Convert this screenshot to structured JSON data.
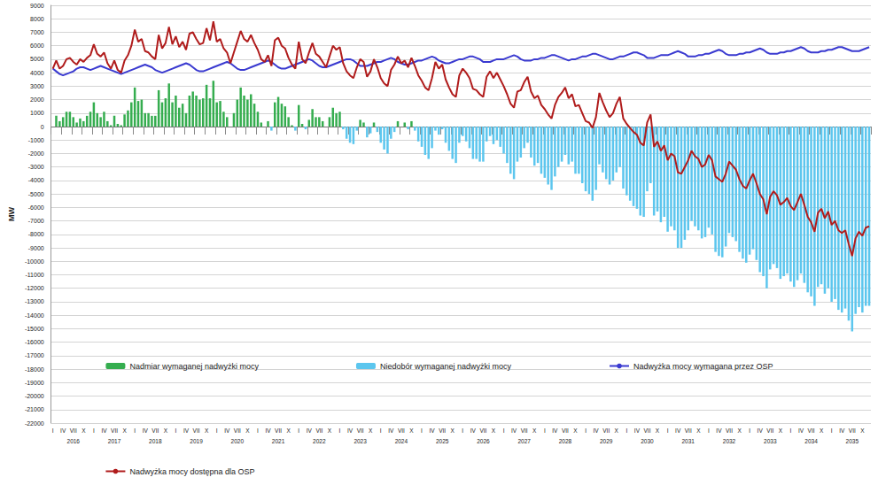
{
  "chart_data": {
    "type": "bar",
    "y_label": "MW",
    "categories": [
      "I",
      null,
      null,
      "IV",
      null,
      null,
      "VII",
      null,
      null,
      "X",
      null,
      null,
      "I",
      null,
      null,
      "IV",
      null,
      null,
      "VII",
      null,
      null,
      "X",
      null,
      null,
      "I",
      null,
      null,
      "IV",
      null,
      null,
      "VII",
      null,
      null,
      "X",
      null,
      null,
      "I",
      null,
      null,
      "IV",
      null,
      null,
      "VII",
      null,
      null,
      "X",
      null,
      null,
      "I",
      null,
      null,
      "IV",
      null,
      null,
      "VII",
      null,
      null,
      "X",
      null,
      null,
      "I",
      null,
      null,
      "IV",
      null,
      null,
      "VII",
      null,
      null,
      "X",
      null,
      null,
      "I",
      null,
      null,
      "IV",
      null,
      null,
      "VII",
      null,
      null,
      "X",
      null,
      null,
      "I",
      null,
      null,
      "IV",
      null,
      null,
      "VII",
      null,
      null,
      "X",
      null,
      null,
      "I",
      null,
      null,
      "IV",
      null,
      null,
      "VII",
      null,
      null,
      "X",
      null,
      null,
      "I",
      null,
      null,
      "IV",
      null,
      null,
      "VII",
      null,
      null,
      "X",
      null,
      null,
      "I",
      null,
      null,
      "IV",
      null,
      null,
      "VII",
      null,
      null,
      "X",
      null,
      null,
      "I",
      null,
      null,
      "IV",
      null,
      null,
      "VII",
      null,
      null,
      "X",
      null,
      null,
      "I",
      null,
      null,
      "IV",
      null,
      null,
      "VII",
      null,
      null,
      "X",
      null,
      null,
      "I",
      null,
      null,
      "IV",
      null,
      null,
      "VII",
      null,
      null,
      "X",
      null,
      null,
      "I",
      null,
      null,
      "IV",
      null,
      null,
      "VII",
      null,
      null,
      "X",
      null,
      null,
      "I",
      null,
      null,
      "IV",
      null,
      null,
      "VII",
      null,
      null,
      "X",
      null,
      null,
      "I",
      null,
      null,
      "IV",
      null,
      null,
      "VII",
      null,
      null,
      "X",
      null,
      null,
      "I",
      null,
      null,
      "IV",
      null,
      null,
      "VII",
      null,
      null,
      "X",
      null,
      null,
      "I",
      null,
      null,
      "IV",
      null,
      null,
      "VII",
      null,
      null,
      "X",
      null,
      null,
      "I",
      null,
      null,
      "IV",
      null,
      null,
      "VII",
      null,
      null,
      "X",
      null,
      null
    ],
    "year_labels": [
      "2016",
      "2017",
      "2018",
      "2019",
      "2020",
      "2021",
      "2022",
      "2023",
      "2024",
      "2025",
      "2026",
      "2027",
      "2028",
      "2029",
      "2030",
      "2031",
      "2032",
      "2033",
      "2034",
      "2035"
    ],
    "ylim": [
      -22000,
      9000
    ],
    "yticks": [
      -22000,
      -21000,
      -20000,
      -19000,
      -18000,
      -17000,
      -16000,
      -15000,
      -14000,
      -13000,
      -12000,
      -11000,
      -10000,
      -9000,
      -8000,
      -7000,
      -6000,
      -5000,
      -4000,
      -3000,
      -2000,
      -1000,
      0,
      1000,
      2000,
      3000,
      4000,
      5000,
      6000,
      7000,
      8000,
      9000
    ],
    "grid": true,
    "legend": "bottom",
    "series": [
      {
        "name": "Nadmiar wymaganej nadwyżki mocy",
        "type": "bar",
        "color": "#35ad4f",
        "values": [
          0,
          800,
          400,
          700,
          1100,
          1100,
          700,
          300,
          600,
          400,
          800,
          1100,
          1800,
          1000,
          700,
          1100,
          400,
          100,
          800,
          200,
          100,
          900,
          1200,
          1800,
          2900,
          1900,
          2000,
          1000,
          1000,
          800,
          800,
          2700,
          1800,
          2100,
          3200,
          1800,
          2300,
          1400,
          1700,
          1000,
          2300,
          2600,
          2300,
          2000,
          2100,
          3100,
          2100,
          3400,
          1800,
          1900,
          1100,
          700,
          0,
          1000,
          2000,
          2900,
          2300,
          2000,
          2400,
          1700,
          1100,
          300,
          0,
          400,
          null,
          1800,
          2200,
          1700,
          1500,
          700,
          100,
          null,
          1600,
          200,
          null,
          500,
          1300,
          700,
          700,
          400,
          0,
          700,
          1400,
          1000,
          1100,
          null,
          null,
          null,
          null,
          null,
          500,
          300,
          null,
          null,
          300,
          null,
          null,
          null,
          null,
          null,
          null,
          400,
          0,
          300,
          null,
          400,
          null,
          null,
          null,
          null,
          null,
          null,
          null,
          null,
          null,
          null,
          null,
          null,
          null,
          null,
          null,
          null,
          null,
          null,
          null,
          null,
          null,
          null,
          null,
          null,
          null,
          null,
          null,
          null,
          null,
          null,
          null,
          null,
          null,
          null,
          null,
          null,
          null,
          null,
          null,
          null,
          null,
          null,
          null,
          null,
          null,
          null,
          null,
          null,
          null,
          null,
          null,
          null,
          null,
          null,
          null,
          null,
          null,
          null,
          null,
          null,
          null,
          null,
          null,
          null,
          null,
          null,
          null,
          null,
          null,
          null,
          null,
          null,
          null,
          null,
          null,
          null,
          null,
          null,
          null,
          null,
          null,
          null,
          null,
          null,
          null,
          null,
          null,
          null,
          null,
          null,
          null,
          null,
          null,
          null,
          null,
          null,
          null,
          null,
          null,
          null,
          null,
          null,
          null,
          null,
          null,
          null,
          null,
          null,
          null,
          null,
          null,
          null,
          null,
          null,
          null,
          null,
          null,
          null,
          null,
          null,
          null,
          null,
          null,
          null,
          null,
          null,
          null,
          null,
          null,
          null,
          null,
          null,
          null,
          null
        ]
      },
      {
        "name": "Niedobór wymaganej nadwyżki mocy",
        "type": "bar",
        "color": "#5cc6ee",
        "values": [
          null,
          null,
          null,
          null,
          null,
          null,
          null,
          null,
          null,
          null,
          null,
          null,
          null,
          null,
          null,
          null,
          null,
          null,
          null,
          null,
          null,
          null,
          null,
          null,
          null,
          null,
          null,
          null,
          null,
          null,
          null,
          null,
          null,
          null,
          null,
          null,
          null,
          null,
          null,
          null,
          null,
          null,
          null,
          null,
          null,
          null,
          null,
          null,
          null,
          null,
          null,
          null,
          null,
          null,
          null,
          null,
          null,
          null,
          null,
          null,
          null,
          null,
          null,
          null,
          -300,
          null,
          null,
          null,
          null,
          null,
          null,
          -300,
          null,
          null,
          -200,
          null,
          null,
          null,
          null,
          null,
          null,
          null,
          null,
          null,
          null,
          -200,
          -900,
          -1200,
          -1300,
          -300,
          null,
          null,
          -800,
          -500,
          null,
          -400,
          -1200,
          -1700,
          -2000,
          -900,
          -400,
          null,
          null,
          null,
          -200,
          null,
          -300,
          -1100,
          -1500,
          -2100,
          -2400,
          -1600,
          -300,
          -600,
          -200,
          -1200,
          -1800,
          -2400,
          -2700,
          -1200,
          -700,
          -1100,
          -1600,
          -2400,
          -2400,
          -2600,
          -2600,
          -1100,
          -700,
          -1300,
          -1000,
          -1500,
          -2000,
          -2700,
          -3500,
          -3900,
          -2600,
          -2300,
          -1600,
          -1200,
          -2300,
          -2900,
          -2700,
          -3500,
          -3800,
          -4300,
          -4700,
          -3700,
          -3000,
          -2600,
          -2100,
          -2800,
          -2600,
          -3500,
          -3500,
          -4200,
          -4800,
          -5000,
          -5500,
          -4700,
          -2800,
          -3400,
          -3900,
          -4300,
          -4000,
          -3400,
          -3000,
          -4600,
          -5100,
          -5500,
          -5900,
          -6100,
          -6600,
          -6700,
          -4800,
          -4200,
          -6600,
          -6300,
          -7100,
          -6700,
          -7800,
          -7400,
          -7700,
          -9000,
          -9000,
          -8400,
          -7700,
          -7000,
          -7400,
          -7700,
          -8300,
          -8200,
          -7500,
          -8000,
          -9300,
          -9600,
          -9700,
          -8900,
          -7900,
          -8200,
          -8500,
          -9300,
          -9800,
          -10100,
          -9500,
          -9100,
          -9900,
          -10800,
          -11100,
          -12000,
          -10600,
          -10200,
          -10500,
          -11300,
          -11100,
          -10900,
          -11500,
          -11900,
          -11400,
          -10900,
          -11600,
          -12300,
          -12600,
          -13300,
          -11900,
          -11700,
          -12400,
          -12000,
          -13000,
          -12800,
          -13600,
          -13800,
          -13500,
          -14400,
          -15200,
          -13900,
          -13400,
          -13800,
          -13300,
          -13300
        ]
      },
      {
        "name": "Nadwyżka mocy wymagana przez OSP",
        "type": "line",
        "color": "#3a3ad0",
        "values": [
          4300,
          4100,
          3900,
          3800,
          3900,
          4000,
          4100,
          4300,
          4400,
          4400,
          4300,
          4200,
          4300,
          4400,
          4500,
          4400,
          4300,
          4200,
          4100,
          4000,
          3900,
          4000,
          4100,
          4200,
          4300,
          4400,
          4500,
          4600,
          4500,
          4400,
          4200,
          4100,
          4000,
          4100,
          4200,
          4300,
          4400,
          4500,
          4600,
          4700,
          4600,
          4400,
          4200,
          4100,
          4100,
          4200,
          4300,
          4400,
          4500,
          4600,
          4700,
          4800,
          4700,
          4500,
          4300,
          4200,
          4200,
          4300,
          4400,
          4500,
          4600,
          4700,
          4800,
          4900,
          4800,
          4600,
          4400,
          4300,
          4300,
          4400,
          4500,
          4600,
          4700,
          4800,
          4900,
          5000,
          4900,
          4700,
          4500,
          4400,
          4400,
          4500,
          4600,
          4700,
          4800,
          4900,
          5000,
          5000,
          4900,
          4700,
          4500,
          4500,
          4500,
          4600,
          4700,
          4800,
          4800,
          4900,
          5000,
          5100,
          5000,
          4800,
          4700,
          4600,
          4600,
          4700,
          4800,
          4900,
          4900,
          5000,
          5100,
          5200,
          5100,
          4900,
          4800,
          4700,
          4700,
          4800,
          4900,
          5000,
          5000,
          5100,
          5200,
          5200,
          5100,
          5000,
          4800,
          4800,
          4800,
          4900,
          5000,
          5000,
          5000,
          5100,
          5200,
          5300,
          5200,
          5000,
          4900,
          4900,
          4900,
          5000,
          5000,
          5100,
          5100,
          5200,
          5300,
          5300,
          5200,
          5100,
          5000,
          4900,
          5000,
          5000,
          5100,
          5200,
          5200,
          5300,
          5400,
          5400,
          5300,
          5200,
          5100,
          5000,
          5000,
          5100,
          5200,
          5200,
          5300,
          5400,
          5500,
          5500,
          5400,
          5300,
          5100,
          5100,
          5100,
          5200,
          5300,
          5300,
          5300,
          5400,
          5500,
          5600,
          5500,
          5400,
          5200,
          5200,
          5200,
          5300,
          5300,
          5400,
          5400,
          5500,
          5600,
          5700,
          5600,
          5400,
          5300,
          5300,
          5300,
          5400,
          5400,
          5500,
          5500,
          5600,
          5700,
          5800,
          5700,
          5500,
          5400,
          5400,
          5400,
          5500,
          5500,
          5600,
          5600,
          5700,
          5800,
          5900,
          5800,
          5600,
          5500,
          5500,
          5500,
          5600,
          5600,
          5700,
          5700,
          5800,
          5900,
          5900,
          5800,
          5700,
          5600,
          5600,
          5600,
          5700,
          5800,
          5900
        ]
      },
      {
        "name": "Nadwyżka mocy dostępna dla OSP",
        "type": "line",
        "color": "#b01c1c",
        "values": [
          4300,
          4900,
          4300,
          4500,
          5000,
          5100,
          4800,
          4600,
          5000,
          4800,
          5100,
          5300,
          6100,
          5400,
          5200,
          5500,
          4700,
          4300,
          4900,
          4200,
          4000,
          4900,
          5300,
          6000,
          7200,
          6300,
          6500,
          5600,
          5500,
          5200,
          5000,
          6800,
          5800,
          6200,
          7400,
          6100,
          6700,
          5900,
          6300,
          5700,
          6900,
          7000,
          6500,
          6100,
          6200,
          7300,
          6400,
          7800,
          6300,
          6500,
          5800,
          5500,
          4700,
          5500,
          6300,
          7100,
          6500,
          6300,
          6800,
          6200,
          5700,
          5000,
          4800,
          5300,
          4500,
          6400,
          6600,
          6000,
          5800,
          5100,
          4600,
          4300,
          6300,
          5000,
          4700,
          5500,
          6200,
          5400,
          5200,
          4800,
          4400,
          5200,
          6000,
          5700,
          5900,
          4700,
          4100,
          3800,
          3600,
          4400,
          5000,
          4800,
          3700,
          4100,
          5000,
          4400,
          3600,
          3200,
          3000,
          4200,
          4600,
          5200,
          4700,
          4900,
          4400,
          5100,
          4500,
          3800,
          3400,
          2900,
          2700,
          3600,
          4800,
          4300,
          4600,
          3500,
          2900,
          2400,
          2200,
          3800,
          4300,
          4000,
          3600,
          2800,
          2700,
          2400,
          2200,
          3700,
          4100,
          3600,
          4000,
          3500,
          3000,
          2400,
          1700,
          1400,
          2600,
          2700,
          3300,
          3700,
          2600,
          2100,
          2300,
          1600,
          1300,
          900,
          600,
          1600,
          2200,
          2500,
          2900,
          2100,
          2400,
          1500,
          1600,
          1000,
          400,
          300,
          -100,
          700,
          2500,
          1800,
          1200,
          700,
          1000,
          1700,
          2200,
          600,
          200,
          -100,
          -400,
          -600,
          -1200,
          -1400,
          300,
          900,
          -1500,
          -1100,
          -1800,
          -1400,
          -2500,
          -2000,
          -2200,
          -3400,
          -3500,
          -3000,
          -2500,
          -1800,
          -2200,
          -2400,
          -3000,
          -2800,
          -2100,
          -2500,
          -3700,
          -3900,
          -4100,
          -3500,
          -2600,
          -2900,
          -3200,
          -3900,
          -4400,
          -4600,
          -4000,
          -3500,
          -4200,
          -5000,
          -5400,
          -6500,
          -5200,
          -4800,
          -5100,
          -5800,
          -5600,
          -5300,
          -5900,
          -6200,
          -5600,
          -5000,
          -5800,
          -6700,
          -7100,
          -7800,
          -6400,
          -6100,
          -6800,
          -6300,
          -7300,
          -7000,
          -7700,
          -7900,
          -7700,
          -8700,
          -9600,
          -8300,
          -7800,
          -8100,
          -7500,
          -7400
        ]
      }
    ]
  }
}
